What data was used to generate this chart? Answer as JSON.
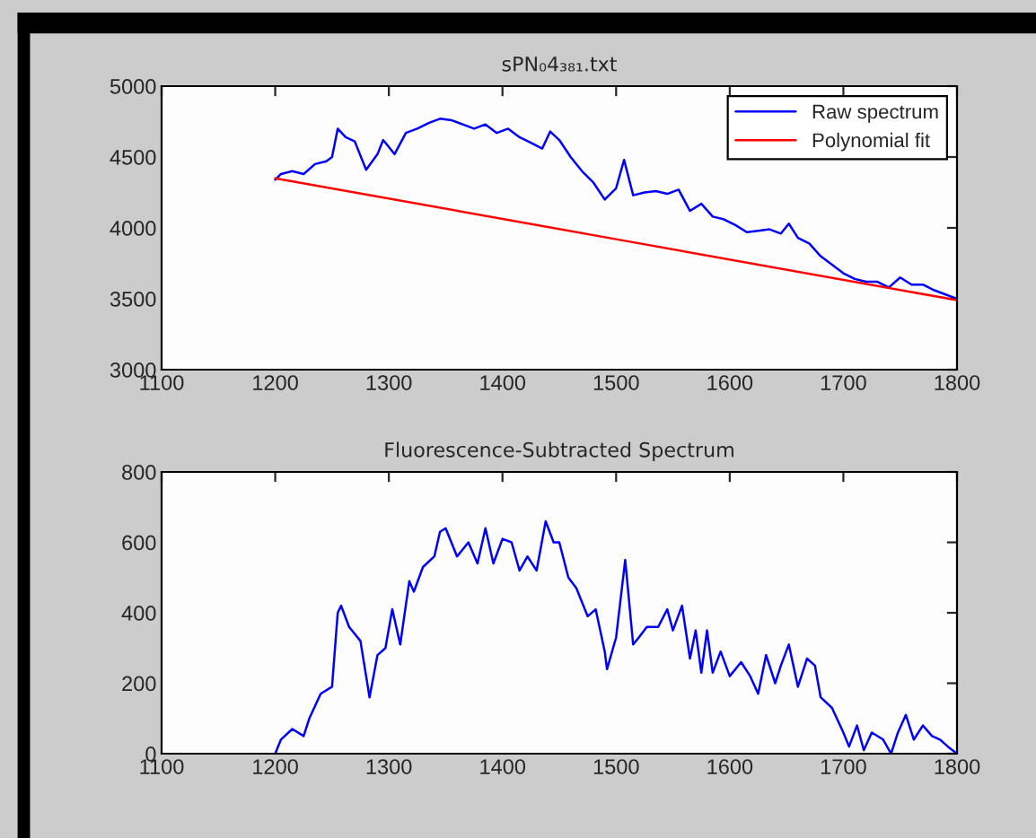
{
  "chart_data": [
    {
      "type": "line",
      "title": "sPN₀4₃₈₁.txt",
      "xlim": [
        1100,
        1800
      ],
      "xticks": [
        1100,
        1200,
        1300,
        1400,
        1500,
        1600,
        1700,
        1800
      ],
      "ylim": [
        3000,
        5000
      ],
      "yticks": [
        3000,
        3500,
        4000,
        4500,
        5000
      ],
      "grid": false,
      "legend": "top right",
      "series": [
        {
          "name": "Raw spectrum",
          "color": "#0000ff",
          "x": [
            1200,
            1205,
            1215,
            1225,
            1235,
            1245,
            1250,
            1255,
            1262,
            1270,
            1280,
            1290,
            1295,
            1305,
            1315,
            1325,
            1335,
            1345,
            1355,
            1365,
            1375,
            1385,
            1395,
            1405,
            1415,
            1425,
            1435,
            1442,
            1450,
            1460,
            1470,
            1480,
            1490,
            1500,
            1507,
            1515,
            1525,
            1535,
            1545,
            1555,
            1565,
            1575,
            1585,
            1595,
            1605,
            1615,
            1625,
            1635,
            1645,
            1652,
            1660,
            1670,
            1680,
            1690,
            1700,
            1710,
            1720,
            1730,
            1740,
            1750,
            1760,
            1770,
            1780,
            1790,
            1800
          ],
          "values": [
            4340,
            4380,
            4400,
            4380,
            4450,
            4470,
            4500,
            4700,
            4640,
            4610,
            4410,
            4520,
            4620,
            4520,
            4670,
            4700,
            4740,
            4770,
            4760,
            4730,
            4700,
            4730,
            4670,
            4700,
            4640,
            4600,
            4560,
            4680,
            4620,
            4500,
            4400,
            4320,
            4200,
            4280,
            4480,
            4230,
            4250,
            4260,
            4240,
            4270,
            4120,
            4170,
            4080,
            4060,
            4020,
            3970,
            3980,
            3990,
            3960,
            4030,
            3930,
            3890,
            3800,
            3740,
            3680,
            3640,
            3620,
            3620,
            3580,
            3650,
            3600,
            3600,
            3560,
            3530,
            3500
          ]
        },
        {
          "name": "Polynomial fit",
          "color": "#ff0000",
          "x": [
            1200,
            1500,
            1800
          ],
          "values": [
            4350,
            3920,
            3490
          ]
        }
      ]
    },
    {
      "type": "line",
      "title": "Fluorescence-Subtracted Spectrum",
      "xlim": [
        1100,
        1800
      ],
      "xticks": [
        1100,
        1200,
        1300,
        1400,
        1500,
        1600,
        1700,
        1800
      ],
      "ylim": [
        0,
        800
      ],
      "yticks": [
        0,
        200,
        400,
        600,
        800
      ],
      "grid": false,
      "legend": false,
      "series": [
        {
          "color": "#0000ff",
          "x": [
            1200,
            1205,
            1215,
            1225,
            1230,
            1240,
            1250,
            1255,
            1258,
            1265,
            1275,
            1283,
            1290,
            1297,
            1303,
            1310,
            1318,
            1322,
            1330,
            1340,
            1345,
            1350,
            1360,
            1370,
            1378,
            1385,
            1392,
            1400,
            1408,
            1415,
            1422,
            1430,
            1438,
            1445,
            1450,
            1458,
            1465,
            1475,
            1482,
            1490,
            1492,
            1500,
            1508,
            1515,
            1520,
            1527,
            1537,
            1545,
            1550,
            1558,
            1565,
            1570,
            1575,
            1580,
            1585,
            1592,
            1600,
            1610,
            1618,
            1625,
            1632,
            1640,
            1645,
            1652,
            1660,
            1668,
            1675,
            1680,
            1690,
            1700,
            1705,
            1712,
            1718,
            1725,
            1735,
            1742,
            1748,
            1755,
            1762,
            1770,
            1778,
            1785,
            1792,
            1800
          ],
          "values": [
            0,
            40,
            70,
            50,
            100,
            170,
            190,
            400,
            420,
            360,
            320,
            160,
            280,
            300,
            410,
            310,
            490,
            460,
            530,
            560,
            630,
            640,
            560,
            600,
            540,
            640,
            540,
            610,
            600,
            520,
            560,
            520,
            660,
            600,
            600,
            500,
            470,
            390,
            410,
            290,
            240,
            330,
            550,
            310,
            330,
            360,
            360,
            410,
            350,
            420,
            270,
            350,
            230,
            350,
            230,
            290,
            220,
            260,
            220,
            170,
            280,
            200,
            250,
            310,
            190,
            270,
            250,
            160,
            130,
            60,
            20,
            80,
            10,
            60,
            40,
            0,
            60,
            110,
            40,
            80,
            50,
            40,
            20,
            0
          ]
        }
      ]
    }
  ]
}
